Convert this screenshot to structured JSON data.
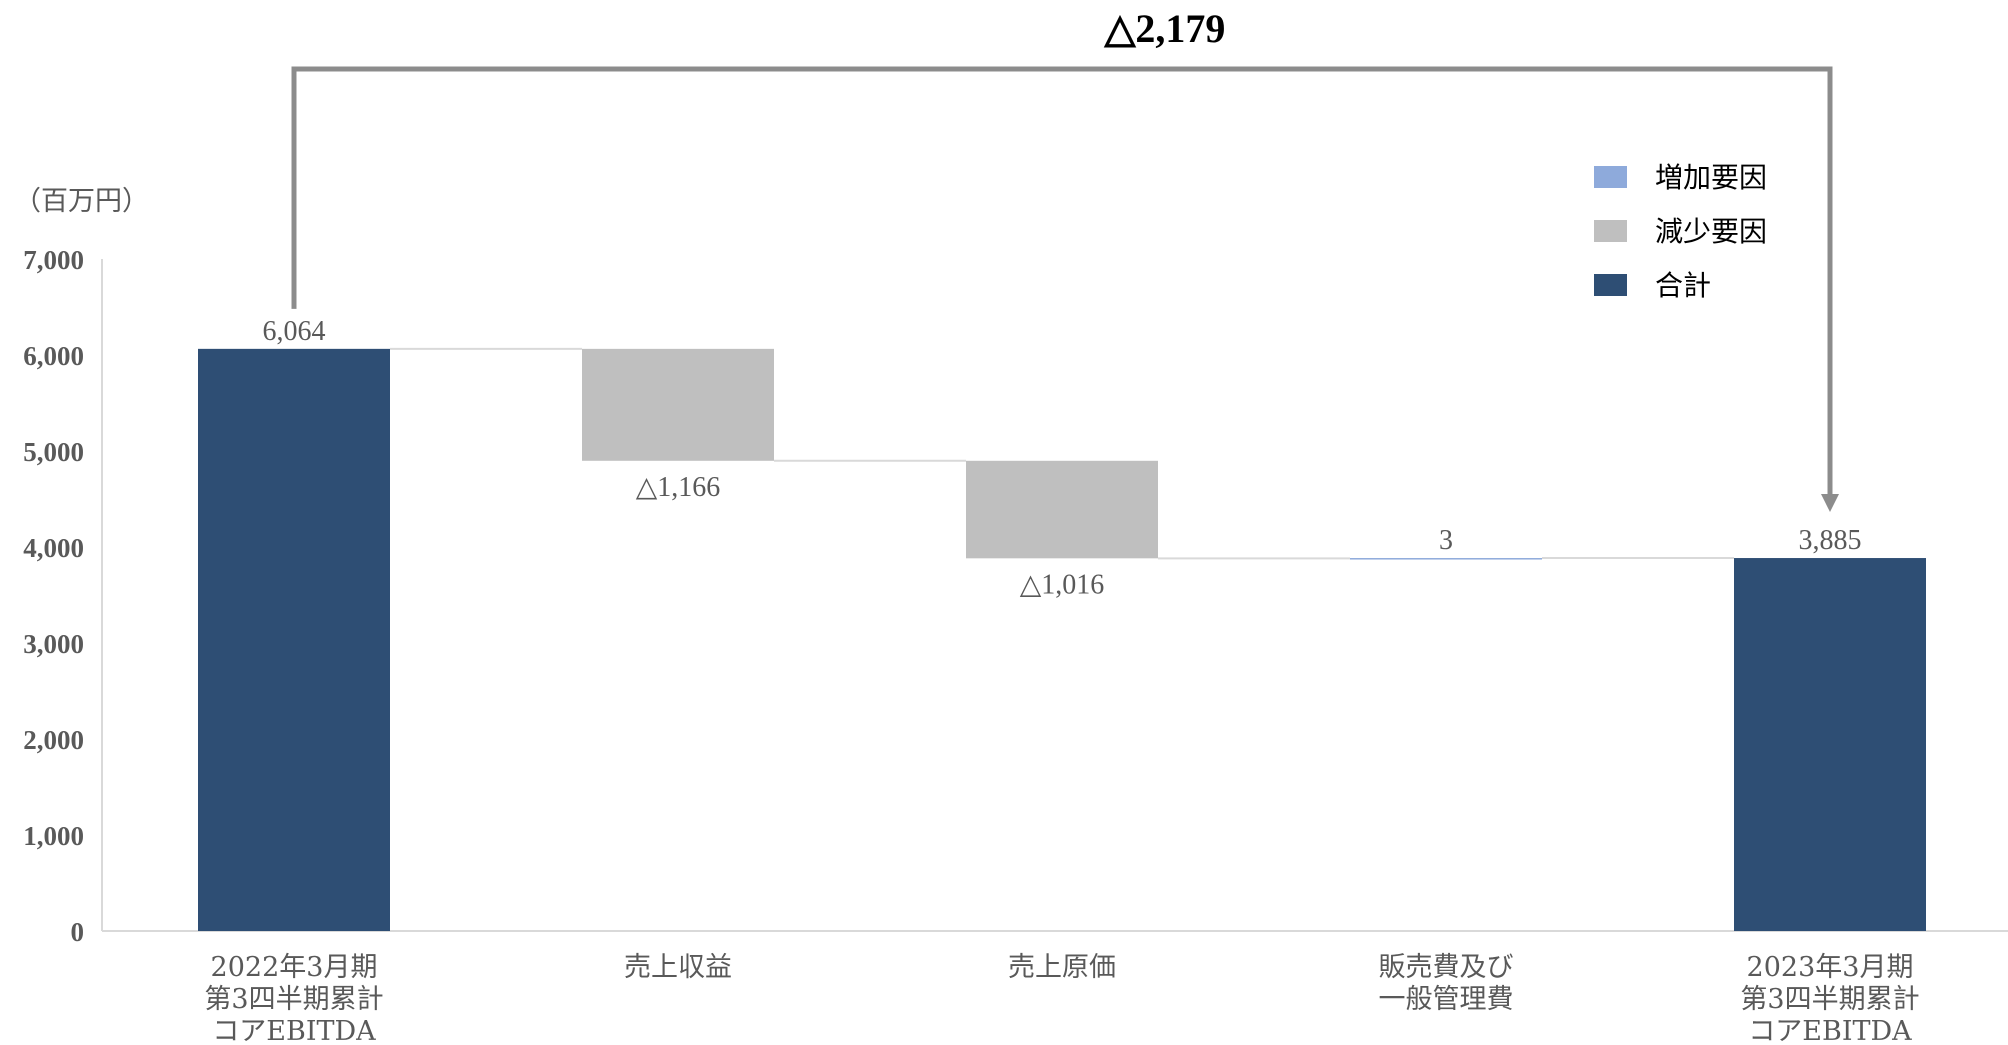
{
  "chart_data": {
    "type": "bar",
    "subtype": "waterfall",
    "unit_label": "（百万円）",
    "ylim": [
      0,
      7000
    ],
    "y_ticks": [
      "0",
      "1,000",
      "2,000",
      "3,000",
      "4,000",
      "5,000",
      "6,000",
      "7,000"
    ],
    "y_tick_values": [
      0,
      1000,
      2000,
      3000,
      4000,
      5000,
      6000,
      7000
    ],
    "grid": false,
    "categories": [
      [
        "2022年3月期",
        "第3四半期累計",
        "コアEBITDA"
      ],
      [
        "売上収益"
      ],
      [
        "売上原価"
      ],
      [
        "販売費及び",
        "一般管理費"
      ],
      [
        "2023年3月期",
        "第3四半期累計",
        "コアEBITDA"
      ]
    ],
    "steps": [
      {
        "kind": "total",
        "value": 6064,
        "label": "6,064"
      },
      {
        "kind": "decrease",
        "value": -1166,
        "label": "△1,166"
      },
      {
        "kind": "decrease",
        "value": -1016,
        "label": "△1,016"
      },
      {
        "kind": "increase",
        "value": 3,
        "label": "3"
      },
      {
        "kind": "total",
        "value": 3885,
        "label": "3,885"
      }
    ],
    "legend": {
      "position": "top-right",
      "entries": [
        {
          "key": "increase",
          "label": "増加要因"
        },
        {
          "key": "decrease",
          "label": "減少要因"
        },
        {
          "key": "total",
          "label": "合計"
        }
      ]
    },
    "total_change": {
      "label": "△2,179",
      "from_index": 0,
      "to_index": 4
    },
    "colors": {
      "increase": "#8eaadb",
      "decrease": "#bfbfbf",
      "total": "#2e4e74",
      "connector": "#d9d9d9",
      "axis": "#d9d9d9",
      "bracket": "#8c8c8c"
    }
  }
}
